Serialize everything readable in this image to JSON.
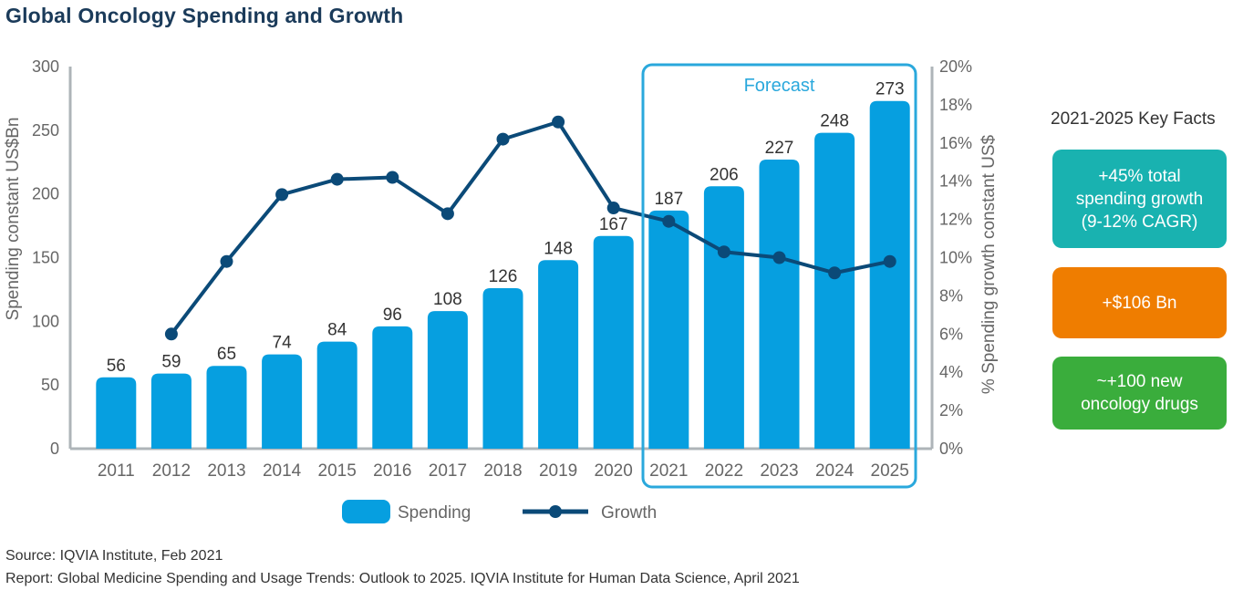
{
  "title": "Global Oncology Spending and Growth",
  "chart_data": {
    "type": "bar+line",
    "categories": [
      "2011",
      "2012",
      "2013",
      "2014",
      "2015",
      "2016",
      "2017",
      "2018",
      "2019",
      "2020",
      "2021",
      "2022",
      "2023",
      "2024",
      "2025"
    ],
    "series": [
      {
        "name": "Spending",
        "type": "bar",
        "axis": "left",
        "values": [
          56,
          59,
          65,
          74,
          84,
          96,
          108,
          126,
          148,
          167,
          187,
          206,
          227,
          248,
          273
        ]
      },
      {
        "name": "Growth",
        "type": "line",
        "axis": "right",
        "values": [
          null,
          6.0,
          9.8,
          13.3,
          14.1,
          14.2,
          12.3,
          16.2,
          17.1,
          12.6,
          11.9,
          10.3,
          10.0,
          9.2,
          9.8
        ]
      }
    ],
    "ylabel": "Spending constant US$Bn",
    "y2label": "% Spending growth constant US$",
    "ylim": [
      0,
      300
    ],
    "y2lim": [
      0,
      20
    ],
    "yticks": [
      "0",
      "50",
      "100",
      "150",
      "200",
      "250",
      "300"
    ],
    "y2ticks": [
      "0%",
      "2%",
      "4%",
      "6%",
      "8%",
      "10%",
      "12%",
      "14%",
      "16%",
      "18%",
      "20%"
    ],
    "forecast_label": "Forecast",
    "forecast_start": "2021",
    "forecast_end": "2025",
    "legend": [
      "Spending",
      "Growth"
    ],
    "colors": {
      "bar": "#069fe0",
      "line": "#0b4a78",
      "forecast_box": "#2aa8dc",
      "axis": "#aeb4b8",
      "tick_text": "#666"
    }
  },
  "key_facts": {
    "title": "2021-2025 Key Facts",
    "items": [
      {
        "text": "+45% total\nspending growth\n(9-12% CAGR)",
        "color": "#19b2b0"
      },
      {
        "text": "+$106 Bn",
        "color": "#ef7d00"
      },
      {
        "text": "~+100 new\noncology drugs",
        "color": "#3aad3c"
      }
    ]
  },
  "footer": {
    "source": "Source: IQVIA Institute, Feb 2021",
    "report": "Report: Global Medicine Spending and Usage Trends: Outlook to 2025. IQVIA Institute for Human Data Science, April 2021"
  }
}
